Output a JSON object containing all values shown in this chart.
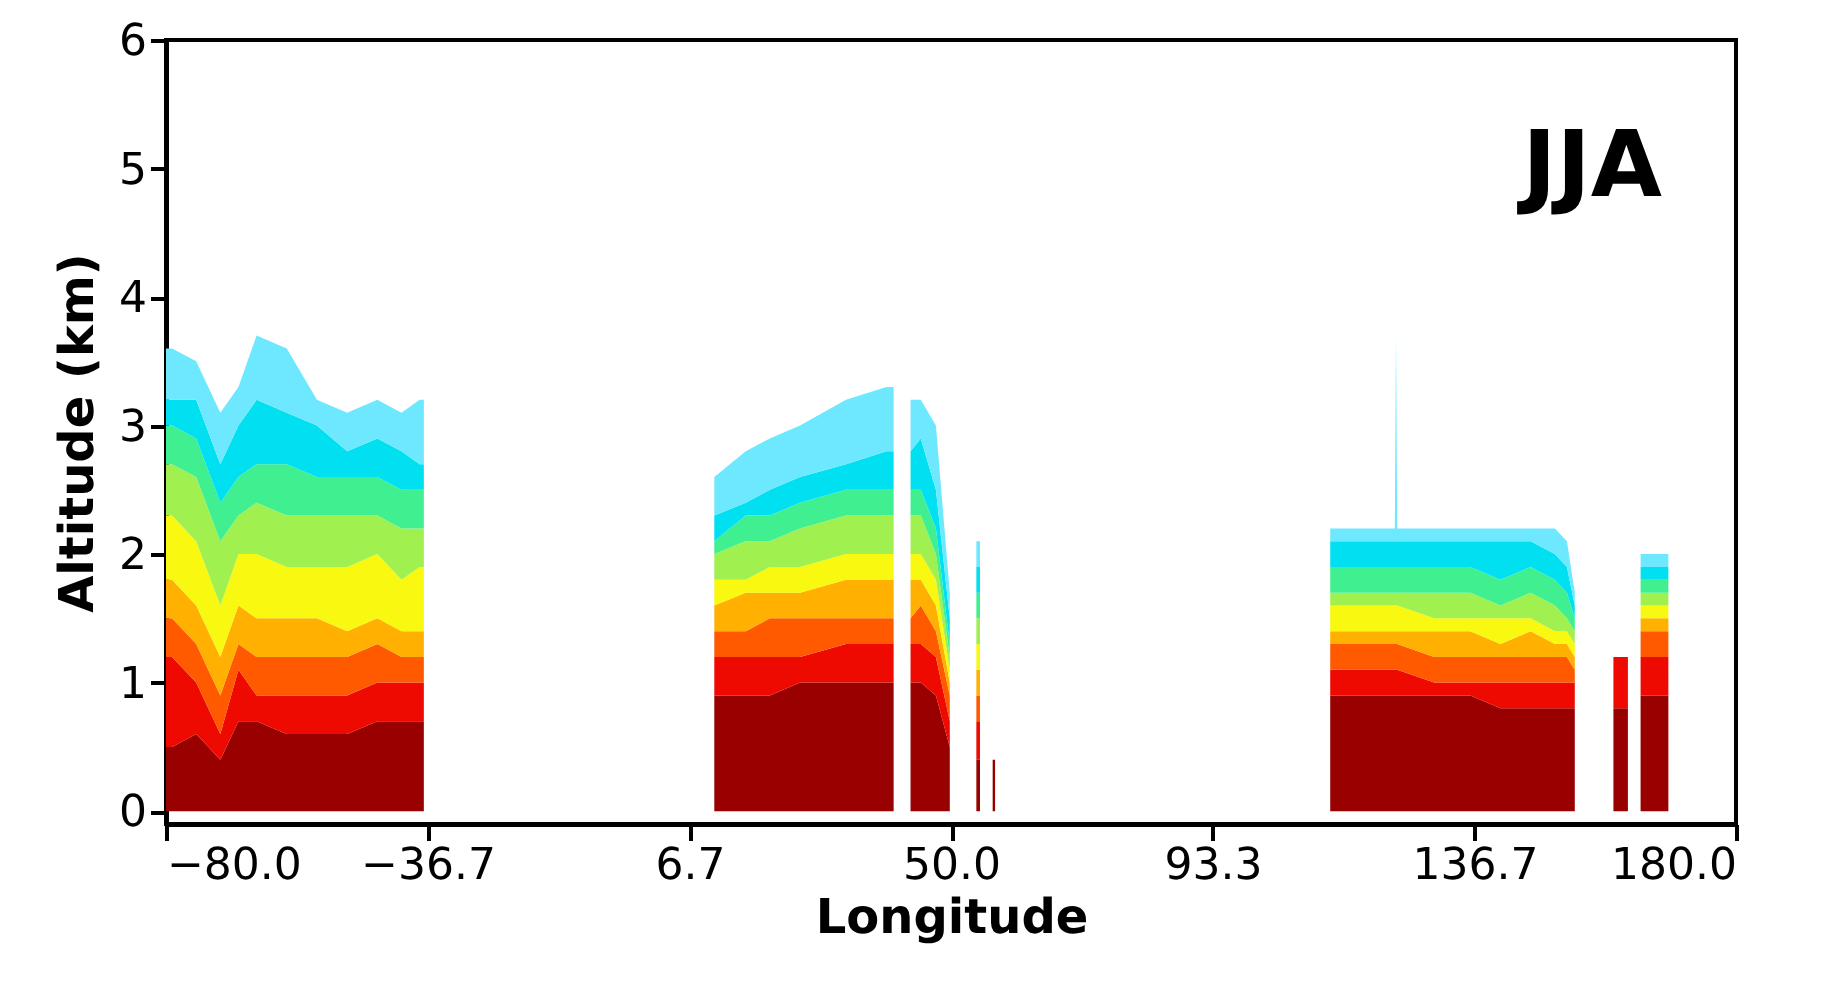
{
  "chart_data": {
    "type": "area",
    "stacked": true,
    "xlabel": "Longitude",
    "ylabel": "Altitude (km)",
    "annotations": [
      "JJA"
    ],
    "xlim": [
      -80,
      180
    ],
    "ylim": [
      -0.1,
      6
    ],
    "xticks": [
      {
        "value": -80,
        "label": "−80.0"
      },
      {
        "value": -36.7,
        "label": "−36.7"
      },
      {
        "value": 6.7,
        "label": "6.7"
      },
      {
        "value": 50,
        "label": "50.0"
      },
      {
        "value": 93.3,
        "label": "93.3"
      },
      {
        "value": 136.7,
        "label": "136.7"
      },
      {
        "value": 180,
        "label": "180.0"
      }
    ],
    "yticks": [
      0,
      1,
      2,
      3,
      4,
      5,
      6
    ],
    "x": [
      -80,
      -79,
      -75,
      -71,
      -68,
      -65,
      -60,
      -55,
      -50,
      -45,
      -41,
      -38,
      -37.3,
      -37,
      10.8,
      16,
      20,
      25,
      32.6,
      39.3,
      40.5,
      41.8,
      43.3,
      45,
      47.5,
      49.8,
      52,
      54.2,
      54.8,
      56,
      56.9,
      57.3,
      80,
      112.8,
      115,
      120,
      123.5,
      123.7,
      123.9,
      130,
      136,
      141,
      146,
      150,
      152,
      153.3,
      156,
      159.7,
      162.1,
      163,
      164.2,
      166.5,
      168.8
    ],
    "series": [
      {
        "color": "#990000",
        "values": [
          0.5,
          0.5,
          0.6,
          0.4,
          0.7,
          0.7,
          0.6,
          0.6,
          0.6,
          0.7,
          0.7,
          0.7,
          0.7,
          null,
          0.9,
          0.9,
          0.9,
          1.0,
          1.0,
          1.0,
          1.0,
          null,
          1.0,
          1.0,
          0.9,
          0.5,
          null,
          0.4,
          0.4,
          null,
          0.4,
          0.4,
          null,
          0.9,
          0.9,
          0.9,
          0.9,
          0.9,
          0.9,
          0.9,
          0.9,
          0.8,
          0.8,
          0.8,
          0.8,
          0.8,
          null,
          0.8,
          0.8,
          null,
          0.9,
          0.9,
          0.9
        ]
      },
      {
        "color": "#ee0a00",
        "values": [
          0.7,
          0.7,
          0.4,
          0.2,
          0.4,
          0.2,
          0.3,
          0.3,
          0.3,
          0.3,
          0.3,
          0.3,
          0.3,
          null,
          0.3,
          0.3,
          0.3,
          0.2,
          0.3,
          0.3,
          0.3,
          null,
          0.3,
          0.3,
          0.3,
          0.2,
          null,
          0.3,
          0.3,
          null,
          null,
          null,
          null,
          0.2,
          0.2,
          0.2,
          0.2,
          0.2,
          0.2,
          0.1,
          0.1,
          0.2,
          0.2,
          0.2,
          0.2,
          0.2,
          null,
          0.4,
          0.4,
          null,
          0.3,
          0.3,
          0.3
        ]
      },
      {
        "color": "#ff5a00",
        "values": [
          0.3,
          0.3,
          0.3,
          0.3,
          0.2,
          0.3,
          0.3,
          0.3,
          0.3,
          0.3,
          0.2,
          0.2,
          0.2,
          null,
          0.2,
          0.2,
          0.3,
          0.3,
          0.2,
          0.2,
          0.2,
          null,
          0.2,
          0.3,
          0.2,
          0.2,
          null,
          0.2,
          0.2,
          null,
          null,
          null,
          null,
          0.2,
          0.2,
          0.2,
          0.2,
          0.2,
          0.2,
          0.2,
          0.2,
          0.2,
          0.2,
          0.2,
          0.2,
          0.1,
          null,
          null,
          null,
          null,
          0.2,
          0.2,
          0.2
        ]
      },
      {
        "color": "#ffb000",
        "values": [
          0.3,
          0.3,
          0.3,
          0.3,
          0.3,
          0.3,
          0.3,
          0.3,
          0.2,
          0.2,
          0.2,
          0.2,
          0.2,
          null,
          0.2,
          0.3,
          0.2,
          0.2,
          0.3,
          0.3,
          0.3,
          null,
          0.3,
          0.2,
          0.2,
          0.1,
          null,
          0.2,
          0.2,
          null,
          null,
          null,
          null,
          0.1,
          0.1,
          0.1,
          0.1,
          0.1,
          0.1,
          0.2,
          0.2,
          0.1,
          0.2,
          0.1,
          0.1,
          0.1,
          null,
          null,
          null,
          null,
          0.1,
          0.1,
          0.1
        ]
      },
      {
        "color": "#f8f810",
        "values": [
          0.5,
          0.5,
          0.5,
          0.4,
          0.4,
          0.5,
          0.4,
          0.4,
          0.5,
          0.5,
          0.4,
          0.5,
          0.5,
          null,
          0.2,
          0.1,
          0.2,
          0.2,
          0.2,
          0.2,
          0.2,
          null,
          0.2,
          0.2,
          0.2,
          0.1,
          null,
          0.2,
          0.2,
          null,
          null,
          null,
          null,
          0.2,
          0.2,
          0.2,
          0.2,
          0.2,
          0.2,
          0.1,
          0.1,
          0.2,
          0.1,
          0.1,
          0.1,
          0.1,
          null,
          null,
          null,
          null,
          0.1,
          0.1,
          0.1
        ]
      },
      {
        "color": "#a0f050",
        "values": [
          0.4,
          0.4,
          0.5,
          0.5,
          0.3,
          0.4,
          0.4,
          0.4,
          0.4,
          0.3,
          0.4,
          0.3,
          0.3,
          null,
          0.2,
          0.3,
          0.2,
          0.3,
          0.3,
          0.3,
          0.3,
          null,
          0.3,
          0.3,
          0.2,
          0.1,
          null,
          0.2,
          0.2,
          null,
          null,
          null,
          null,
          0.1,
          0.1,
          0.1,
          0.1,
          0.1,
          0.1,
          0.2,
          0.2,
          0.1,
          0.2,
          0.2,
          0.1,
          0.1,
          null,
          null,
          null,
          null,
          0.1,
          0.1,
          0.1
        ]
      },
      {
        "color": "#40f090",
        "values": [
          0.3,
          0.3,
          0.3,
          0.3,
          0.3,
          0.3,
          0.4,
          0.3,
          0.3,
          0.3,
          0.3,
          0.3,
          0.3,
          null,
          0.1,
          0.2,
          0.2,
          0.2,
          0.2,
          0.2,
          0.2,
          null,
          0.2,
          0.2,
          0.2,
          0.1,
          null,
          0.2,
          0.2,
          null,
          null,
          null,
          null,
          0.2,
          0.2,
          0.2,
          0.2,
          0.2,
          0.2,
          0.2,
          0.2,
          0.2,
          0.2,
          0.2,
          0.2,
          0.1,
          null,
          null,
          null,
          null,
          0.1,
          0.1,
          0.1
        ]
      },
      {
        "color": "#00e0f0",
        "values": [
          0.2,
          0.2,
          0.3,
          0.3,
          0.4,
          0.5,
          0.4,
          0.4,
          0.2,
          0.3,
          0.3,
          0.2,
          0.2,
          null,
          0.2,
          0.1,
          0.2,
          0.2,
          0.2,
          0.3,
          0.3,
          null,
          0.3,
          0.4,
          0.3,
          0.2,
          null,
          0.2,
          0.2,
          null,
          null,
          null,
          null,
          0.2,
          0.2,
          0.2,
          0.2,
          0.2,
          0.2,
          0.2,
          0.2,
          0.3,
          0.2,
          0.2,
          0.2,
          0.1,
          null,
          null,
          null,
          null,
          0.1,
          0.1,
          0.1
        ]
      },
      {
        "color": "#6ee8ff",
        "values": [
          0.4,
          0.4,
          0.3,
          0.4,
          0.3,
          0.5,
          0.5,
          0.2,
          0.3,
          0.3,
          0.3,
          0.5,
          0.5,
          null,
          0.3,
          0.4,
          0.4,
          0.4,
          0.5,
          0.5,
          0.5,
          null,
          0.4,
          0.3,
          0.5,
          0.2,
          null,
          0.2,
          0.2,
          null,
          null,
          null,
          null,
          0.1,
          0.1,
          0.1,
          0.1,
          1.6,
          0.1,
          0.1,
          0.1,
          0.1,
          0.1,
          0.2,
          0.2,
          0.1,
          null,
          null,
          null,
          null,
          0.1,
          0.1,
          0.1
        ]
      }
    ]
  }
}
